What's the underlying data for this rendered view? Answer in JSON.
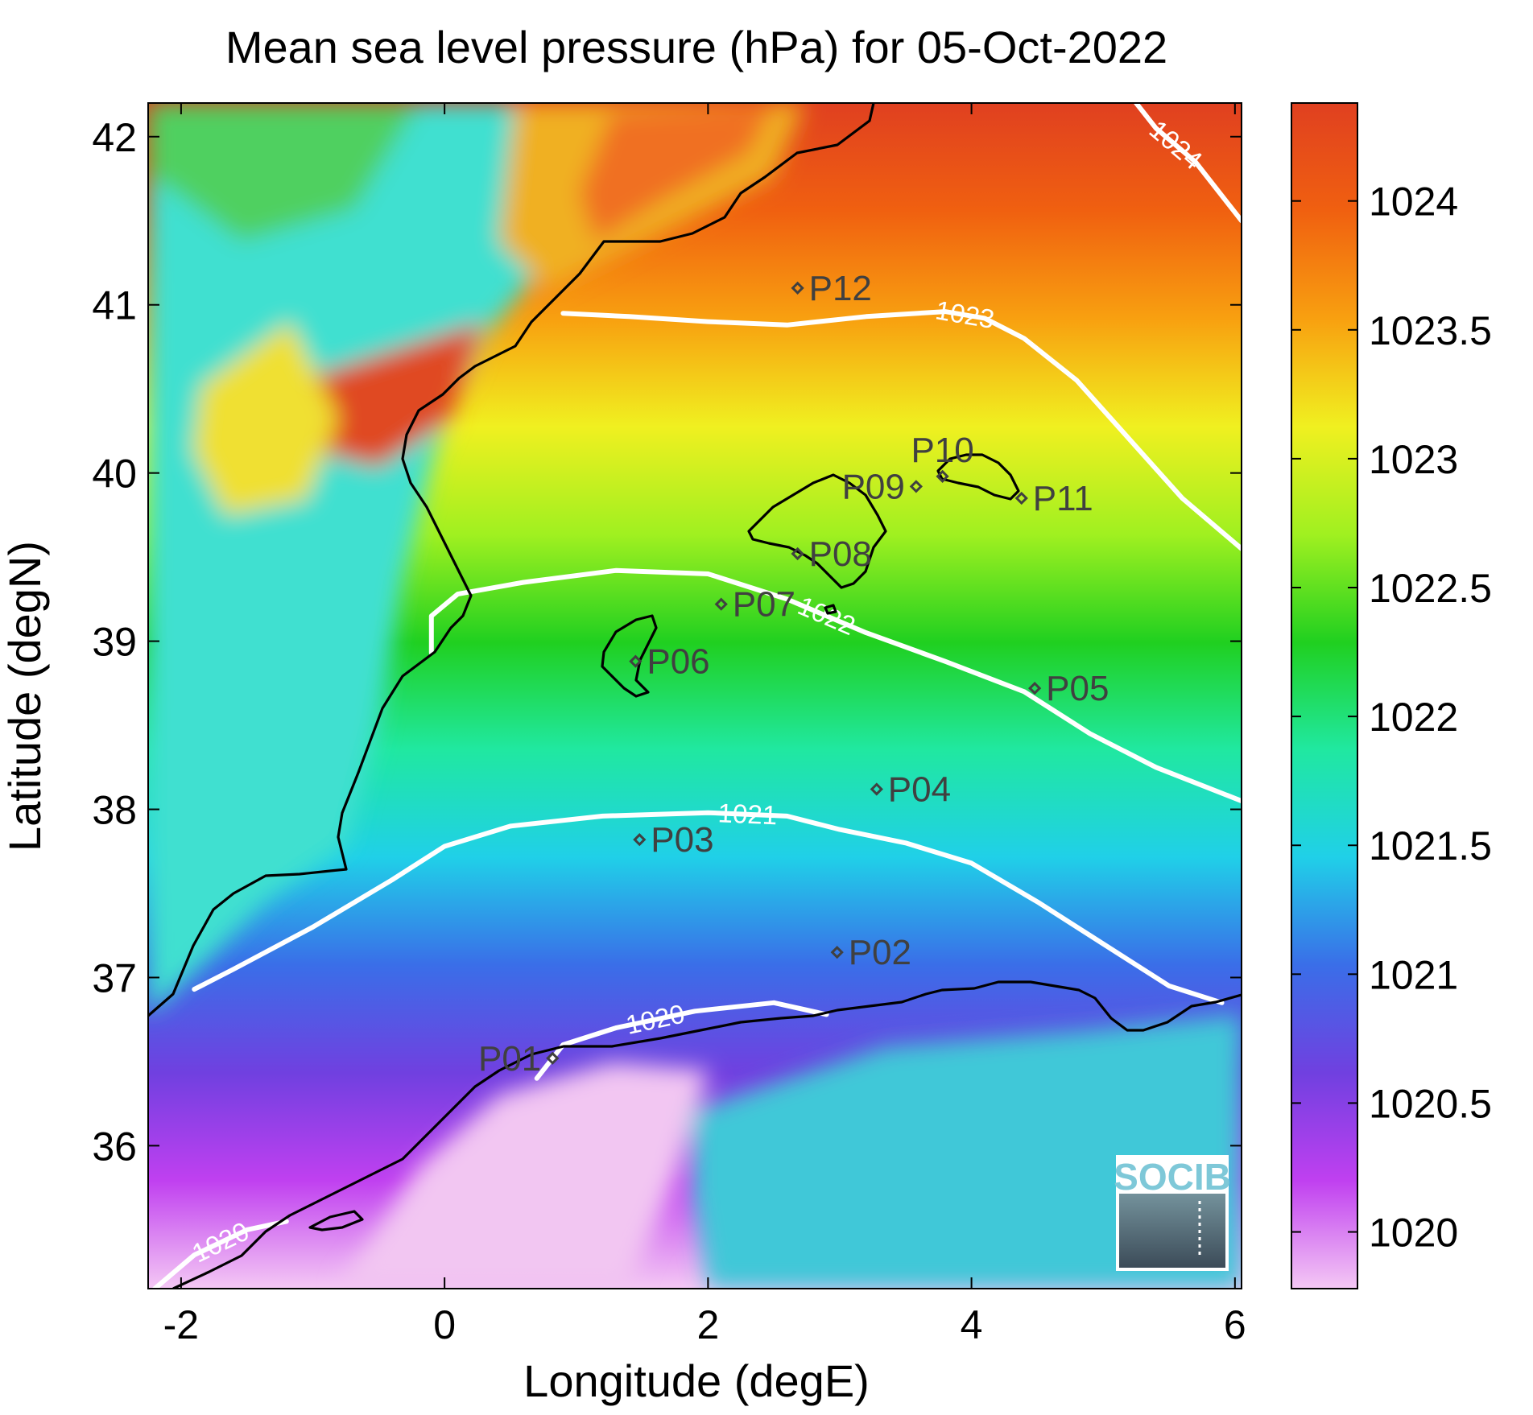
{
  "chart_data": {
    "type": "heatmap",
    "title": "Mean sea level pressure (hPa) for 05-Oct-2022",
    "xlabel": "Longitude (degE)",
    "ylabel": "Latitude (degN)",
    "xlim": [
      -2.25,
      6.05
    ],
    "ylim": [
      35.15,
      42.2
    ],
    "x_ticks": [
      -2,
      0,
      2,
      4,
      6
    ],
    "y_ticks": [
      36,
      37,
      38,
      39,
      40,
      41,
      42
    ],
    "x_tick_labels": [
      "-2",
      "0",
      "2",
      "4",
      "6"
    ],
    "y_tick_labels": [
      "36",
      "37",
      "38",
      "39",
      "40",
      "41",
      "42"
    ],
    "colorbar": {
      "range": [
        1019.78,
        1024.38
      ],
      "ticks": [
        1020,
        1020.5,
        1021,
        1021.5,
        1022,
        1022.5,
        1023,
        1023.5,
        1024
      ],
      "tick_labels": [
        "1020",
        "1020.5",
        "1021",
        "1021.5",
        "1022",
        "1022.5",
        "1023",
        "1023.5",
        "1024"
      ],
      "colors": [
        "#f4c8f4",
        "#c040f0",
        "#7040e0",
        "#3a6ee8",
        "#20d0e8",
        "#20e8a0",
        "#20d020",
        "#a0f020",
        "#f0f020",
        "#f8a010",
        "#f06010",
        "#e04020"
      ]
    },
    "contours": [
      {
        "level": 1020,
        "label": "1020",
        "points": [
          [
            -2.2,
            35.15
          ],
          [
            -1.9,
            35.35
          ],
          [
            -1.5,
            35.5
          ],
          [
            -1.2,
            35.55
          ]
        ]
      },
      {
        "level": 1020,
        "label": "1020",
        "points": [
          [
            0.7,
            36.4
          ],
          [
            0.9,
            36.6
          ],
          [
            1.3,
            36.7
          ],
          [
            1.9,
            36.8
          ],
          [
            2.5,
            36.85
          ],
          [
            2.9,
            36.78
          ]
        ]
      },
      {
        "level": 1021,
        "label": "1021",
        "points": [
          [
            -1.9,
            36.93
          ],
          [
            -1.6,
            37.05
          ],
          [
            -1.0,
            37.3
          ],
          [
            -0.4,
            37.58
          ],
          [
            0.0,
            37.78
          ],
          [
            0.5,
            37.9
          ],
          [
            1.2,
            37.96
          ],
          [
            2.0,
            37.98
          ],
          [
            2.6,
            37.96
          ],
          [
            3.0,
            37.88
          ],
          [
            3.5,
            37.8
          ],
          [
            4.0,
            37.68
          ],
          [
            4.5,
            37.45
          ],
          [
            5.0,
            37.2
          ],
          [
            5.5,
            36.95
          ],
          [
            5.9,
            36.85
          ]
        ]
      },
      {
        "level": 1022,
        "label": "1022",
        "points": [
          [
            -0.1,
            38.93
          ],
          [
            -0.1,
            39.15
          ],
          [
            0.1,
            39.28
          ],
          [
            0.6,
            39.35
          ],
          [
            1.3,
            39.42
          ],
          [
            2.0,
            39.4
          ],
          [
            2.6,
            39.25
          ],
          [
            3.2,
            39.05
          ],
          [
            3.8,
            38.88
          ],
          [
            4.4,
            38.7
          ],
          [
            4.9,
            38.45
          ],
          [
            5.4,
            38.25
          ],
          [
            6.05,
            38.05
          ]
        ]
      },
      {
        "level": 1023,
        "label": "1023",
        "points": [
          [
            0.9,
            40.95
          ],
          [
            1.4,
            40.93
          ],
          [
            2.0,
            40.9
          ],
          [
            2.6,
            40.88
          ],
          [
            3.2,
            40.93
          ],
          [
            3.8,
            40.96
          ],
          [
            4.1,
            40.92
          ],
          [
            4.4,
            40.8
          ],
          [
            4.8,
            40.55
          ],
          [
            5.2,
            40.2
          ],
          [
            5.6,
            39.85
          ],
          [
            6.05,
            39.55
          ]
        ]
      },
      {
        "level": 1024,
        "label": "1024",
        "points": [
          [
            5.25,
            42.2
          ],
          [
            5.4,
            42.05
          ],
          [
            5.7,
            41.85
          ],
          [
            6.05,
            41.5
          ]
        ]
      }
    ],
    "points": [
      {
        "name": "P01",
        "lon": 0.82,
        "lat": 36.52,
        "label_side": "left"
      },
      {
        "name": "P02",
        "lon": 2.98,
        "lat": 37.15,
        "label_side": "right"
      },
      {
        "name": "P03",
        "lon": 1.48,
        "lat": 37.82,
        "label_side": "right"
      },
      {
        "name": "P04",
        "lon": 3.28,
        "lat": 38.12,
        "label_side": "right"
      },
      {
        "name": "P05",
        "lon": 4.48,
        "lat": 38.72,
        "label_side": "right"
      },
      {
        "name": "P06",
        "lon": 1.45,
        "lat": 38.88,
        "label_side": "right"
      },
      {
        "name": "P07",
        "lon": 2.1,
        "lat": 39.22,
        "label_side": "right"
      },
      {
        "name": "P08",
        "lon": 2.68,
        "lat": 39.52,
        "label_side": "right"
      },
      {
        "name": "P09",
        "lon": 3.58,
        "lat": 39.92,
        "label_side": "left"
      },
      {
        "name": "P10",
        "lon": 3.78,
        "lat": 39.98,
        "label_side": "above"
      },
      {
        "name": "P11",
        "lon": 4.38,
        "lat": 39.85,
        "label_side": "right"
      },
      {
        "name": "P12",
        "lon": 2.68,
        "lat": 41.1,
        "label_side": "right"
      }
    ]
  },
  "logo": {
    "text": "SOCIB"
  }
}
